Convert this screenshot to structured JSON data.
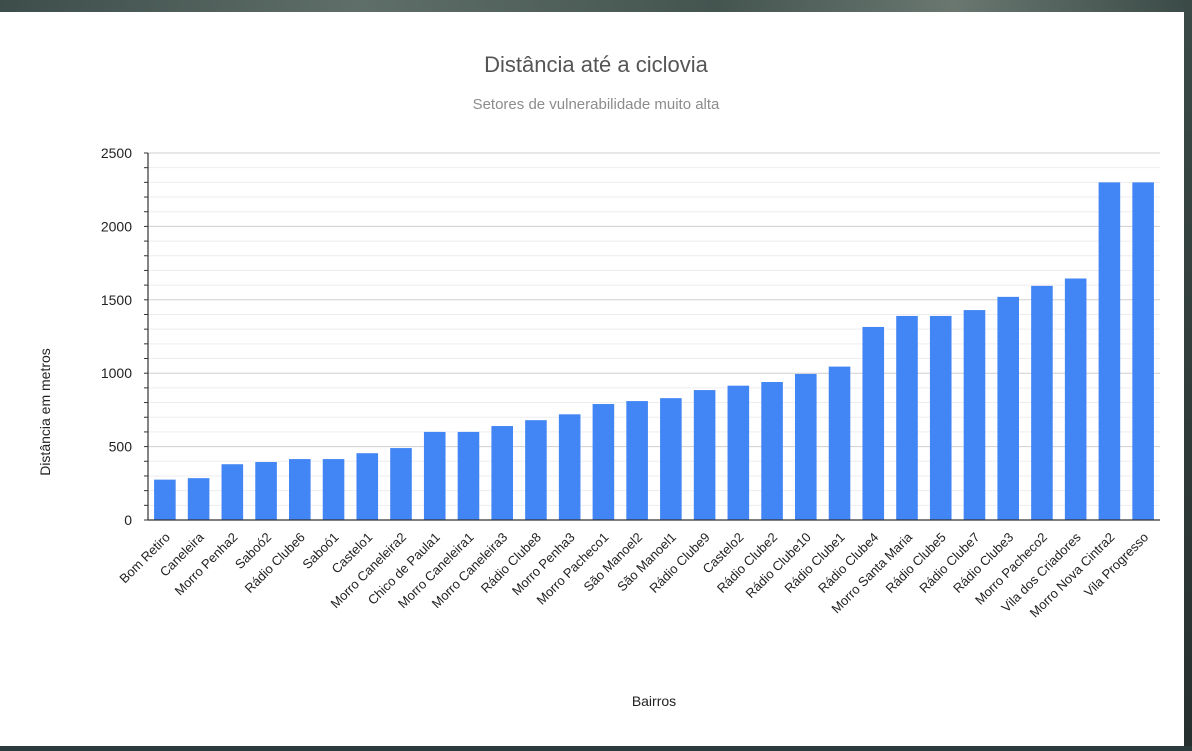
{
  "chart_data": {
    "type": "bar",
    "title": "Distância até a ciclovia",
    "subtitle": "Setores de vulnerabilidade muito alta",
    "xlabel": "Bairros",
    "ylabel": "Distância em metros",
    "ylim": [
      0,
      2500
    ],
    "yticks": [
      0,
      500,
      1000,
      1500,
      2000,
      2500
    ],
    "grid": true,
    "bar_color": "#4285f4",
    "categories": [
      "Bom Retiro",
      "Caneleira",
      "Morro Penha2",
      "Saboó2",
      "Rádio Clube6",
      "Saboó1",
      "Castelo1",
      "Morro Caneleira2",
      "Chico de Paula1",
      "Morro Caneleira1",
      "Morro Caneleira3",
      "Rádio Clube8",
      "Morro Penha3",
      "Morro Pacheco1",
      "São Manoel2",
      "São Manoel1",
      "Rádio Clube9",
      "Castelo2",
      "Rádio Clube2",
      "Rádio Clube10",
      "Rádio Clube1",
      "Rádio Clube4",
      "Morro Santa Maria",
      "Rádio Clube5",
      "Rádio Clube7",
      "Rádio Clube3",
      "Morro Pacheco2",
      "Vila dos Criadores",
      "Morro Nova Cintra2",
      "Vila Progresso"
    ],
    "values": [
      275,
      285,
      380,
      395,
      415,
      415,
      455,
      490,
      600,
      600,
      640,
      680,
      720,
      790,
      810,
      830,
      885,
      915,
      940,
      995,
      1045,
      1315,
      1390,
      1390,
      1430,
      1520,
      1595,
      1645,
      2300,
      2300
    ]
  }
}
